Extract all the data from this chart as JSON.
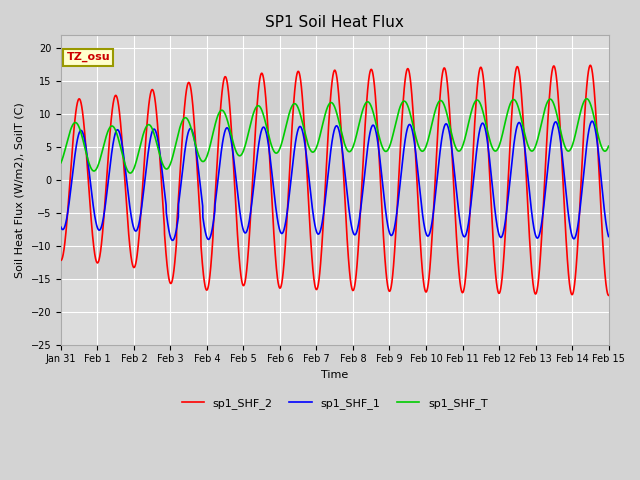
{
  "title": "SP1 Soil Heat Flux",
  "xlabel": "Time",
  "ylabel": "Soil Heat Flux (W/m2), SoilT (C)",
  "ylim": [
    -25,
    22
  ],
  "x_tick_labels": [
    "Jan 31",
    "Feb 1",
    "Feb 2",
    "Feb 3",
    "Feb 4",
    "Feb 5",
    "Feb 6",
    "Feb 7",
    "Feb 8",
    "Feb 9",
    "Feb 10",
    "Feb 11",
    "Feb 12",
    "Feb 13",
    "Feb 14",
    "Feb 15"
  ],
  "color_shf2": "#ff0000",
  "color_shf1": "#0000ff",
  "color_shft": "#00cc00",
  "legend_labels": [
    "sp1_SHF_2",
    "sp1_SHF_1",
    "sp1_SHF_T"
  ],
  "fig_bg_color": "#d3d3d3",
  "plot_bg_color": "#dcdcdc",
  "band_color": "#c8c8c8",
  "annotation_text": "TZ_osu",
  "annotation_bg": "#ffffcc",
  "annotation_border": "#999900",
  "title_fontsize": 11,
  "label_fontsize": 8,
  "tick_fontsize": 7,
  "grid_color": "#ffffff",
  "line_width": 1.2
}
